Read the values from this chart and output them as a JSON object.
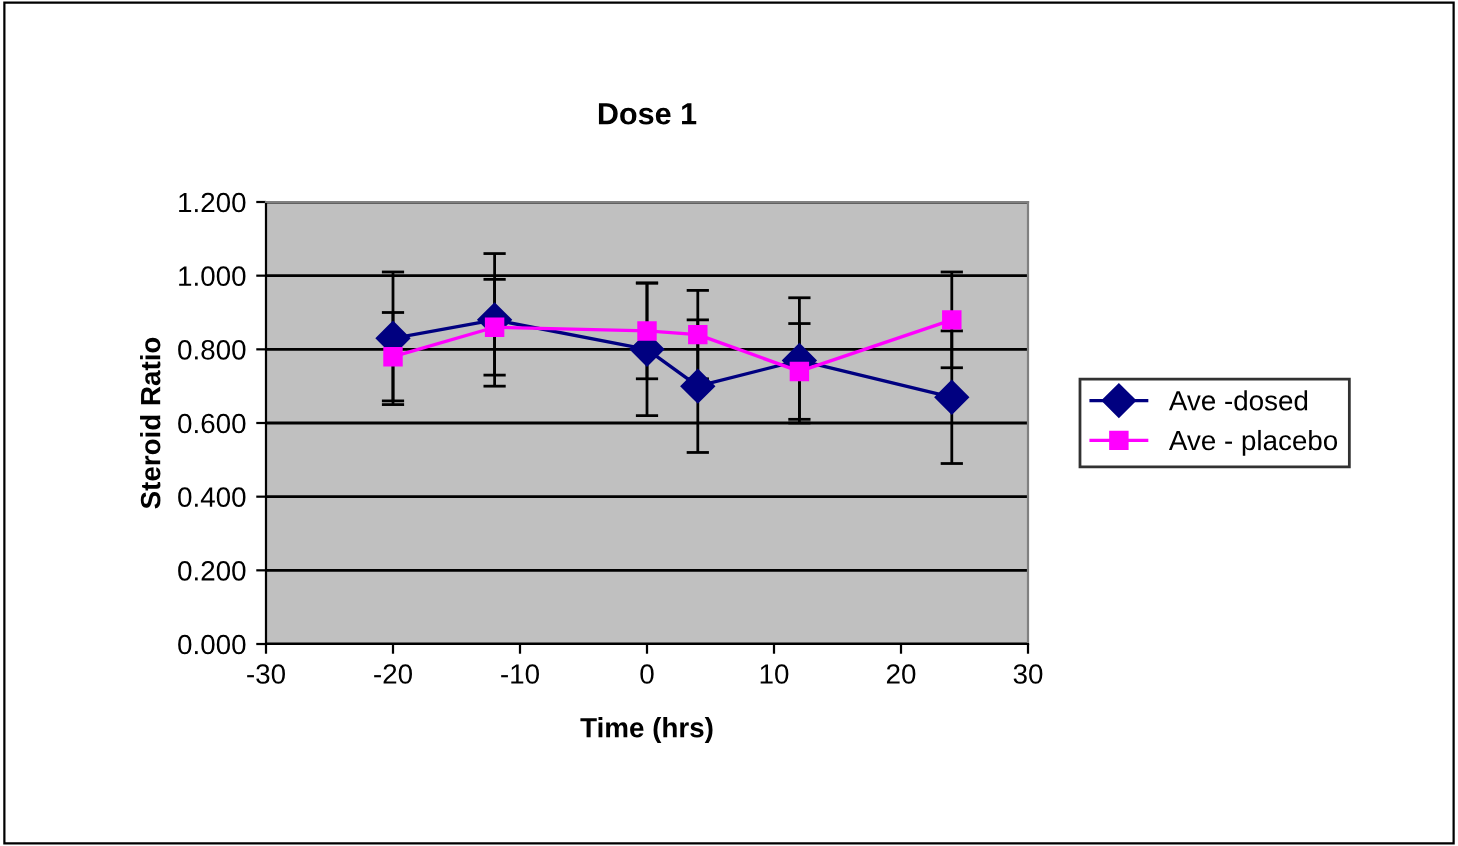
{
  "chart_data": {
    "type": "line",
    "title": "Dose 1",
    "xlabel": "Time (hrs)",
    "ylabel": "Steroid Ratio",
    "x": [
      -20,
      -12,
      0,
      4,
      12,
      24
    ],
    "series": [
      {
        "name": "Ave -dosed",
        "color": "#000080",
        "marker": "diamond",
        "values": [
          0.83,
          0.88,
          0.8,
          0.7,
          0.77,
          0.67
        ],
        "errors": [
          0.18,
          0.18,
          0.18,
          0.18,
          0.17,
          0.18
        ]
      },
      {
        "name": "Ave - placebo",
        "color": "#ff00ff",
        "marker": "square",
        "values": [
          0.78,
          0.86,
          0.85,
          0.84,
          0.74,
          0.88
        ],
        "errors": [
          0.12,
          0.13,
          0.13,
          0.12,
          0.13,
          0.13
        ]
      }
    ],
    "xlim": [
      -30,
      30
    ],
    "xticks": [
      -30,
      -20,
      -10,
      0,
      10,
      20,
      30
    ],
    "ylim": [
      0,
      1.2
    ],
    "yticks": [
      {
        "value": 0,
        "label": "0.000"
      },
      {
        "value": 0.2,
        "label": "0.200"
      },
      {
        "value": 0.4,
        "label": "0.400"
      },
      {
        "value": 0.6,
        "label": "0.600"
      },
      {
        "value": 0.8,
        "label": "0.800"
      },
      {
        "value": 1.0,
        "label": "1.000"
      },
      {
        "value": 1.2,
        "label": "1.200"
      }
    ],
    "grid": "y",
    "legend": "right",
    "line_style": "solid"
  }
}
